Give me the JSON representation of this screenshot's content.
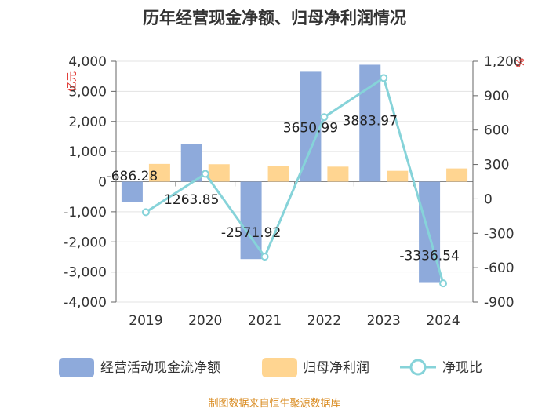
{
  "chart_data": {
    "type": "bar+line",
    "title": "历年经营现金净额、归母净利润情况",
    "categories": [
      "2019",
      "2020",
      "2021",
      "2022",
      "2023",
      "2024"
    ],
    "y_left": {
      "unit": "亿元",
      "ylim": [
        -4000,
        4000
      ],
      "ticks": [
        "4,000",
        "3,000",
        "2,000",
        "1,000",
        "0",
        "-1,000",
        "-2,000",
        "-3,000",
        "-4,000"
      ]
    },
    "y_right": {
      "unit": "%",
      "ylim": [
        -900,
        1200
      ],
      "ticks": [
        "1,200",
        "900",
        "600",
        "300",
        "0",
        "-300",
        "-600",
        "-900"
      ]
    },
    "series": [
      {
        "name": "经营活动现金流净额",
        "type": "bar",
        "axis": "left",
        "color": "#8eaadb",
        "values": [
          -686.28,
          1263.85,
          -2571.92,
          3650.99,
          3883.97,
          -3336.54
        ],
        "labels": [
          "-686.28",
          "1263.85",
          "-2571.92",
          "3650.99",
          "3883.97",
          "-3336.54"
        ]
      },
      {
        "name": "归母净利润",
        "type": "bar",
        "axis": "left",
        "color": "#ffd591",
        "values": [
          590,
          580,
          510,
          500,
          360,
          440
        ]
      },
      {
        "name": "净现比",
        "type": "line",
        "axis": "right",
        "color": "#86d3d9",
        "values": [
          -116,
          218,
          -504,
          713,
          1054,
          -737
        ]
      }
    ],
    "legend_position": "bottom",
    "grid": true
  },
  "source": "制图数据来自恒生聚源数据库"
}
